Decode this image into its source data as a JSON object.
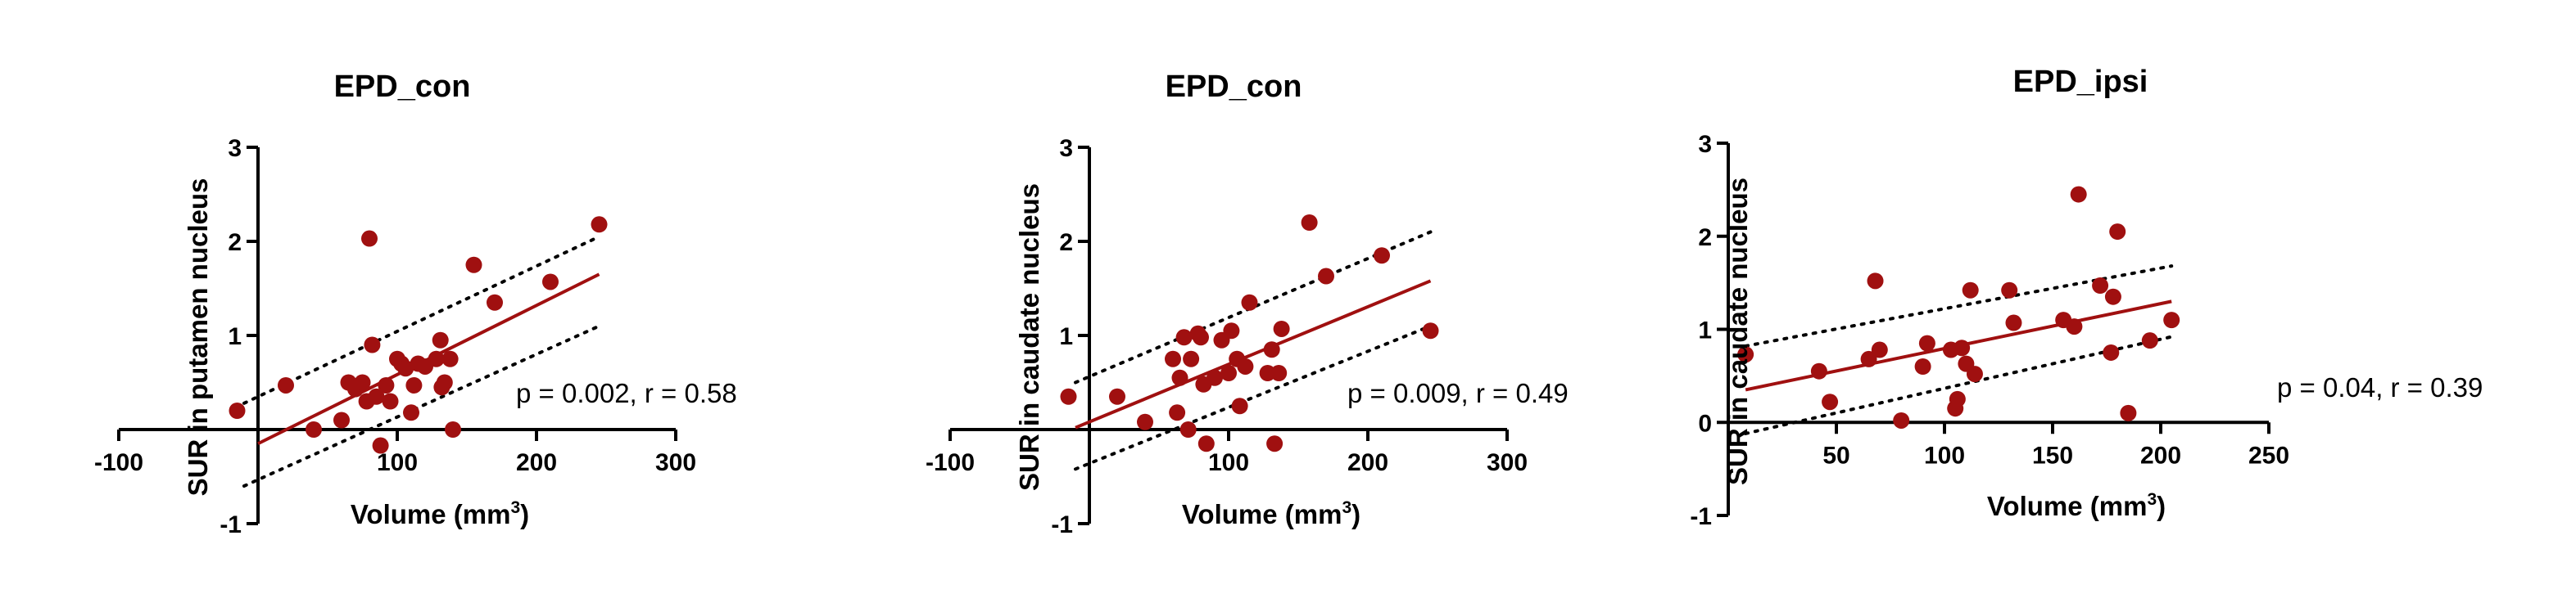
{
  "chart_data": [
    {
      "type": "scatter",
      "title": "EPD_con",
      "xlabel": "Volume (mm",
      "xlabel_sup": "3",
      "xlabel_close": ")",
      "ylabel": "SUR in putamen nucleus",
      "xlim": [
        -100,
        300
      ],
      "ylim": [
        -1,
        3
      ],
      "xticks": [
        -100,
        100,
        200,
        300
      ],
      "yticks": [
        -1,
        1,
        2,
        3
      ],
      "annotation": "p = 0.002, r = 0.58",
      "marker_color": "#a01010",
      "fit_color": "#a01010",
      "points": [
        [
          -15,
          0.2
        ],
        [
          20,
          0.47
        ],
        [
          40,
          0
        ],
        [
          60,
          0.1
        ],
        [
          65,
          0.5
        ],
        [
          70,
          0.43
        ],
        [
          75,
          0.5
        ],
        [
          78,
          0.3
        ],
        [
          80,
          2.03
        ],
        [
          82,
          0.9
        ],
        [
          85,
          0.35
        ],
        [
          88,
          -0.17
        ],
        [
          92,
          0.47
        ],
        [
          95,
          0.3
        ],
        [
          100,
          0.75
        ],
        [
          103,
          0.7
        ],
        [
          106,
          0.65
        ],
        [
          110,
          0.18
        ],
        [
          112,
          0.47
        ],
        [
          115,
          0.7
        ],
        [
          120,
          0.67
        ],
        [
          128,
          0.75
        ],
        [
          131,
          0.95
        ],
        [
          132,
          0.45
        ],
        [
          134,
          0.5
        ],
        [
          138,
          0.75
        ],
        [
          140,
          0
        ],
        [
          155,
          1.75
        ],
        [
          170,
          1.35
        ],
        [
          210,
          1.57
        ],
        [
          245,
          2.18
        ]
      ],
      "fit": [
        [
          0,
          -0.15
        ],
        [
          245,
          1.65
        ]
      ],
      "ci_upper": [
        [
          -10,
          0.28
        ],
        [
          245,
          2.05
        ]
      ],
      "ci_lower": [
        [
          -10,
          -0.6
        ],
        [
          245,
          1.1
        ]
      ]
    },
    {
      "type": "scatter",
      "title": "EPD_con",
      "xlabel": "Volume (mm",
      "xlabel_sup": "3",
      "xlabel_close": ")",
      "ylabel": "SUR in caudate nucleus",
      "xlim": [
        -100,
        300
      ],
      "ylim": [
        -1,
        3
      ],
      "xticks": [
        -100,
        100,
        200,
        300
      ],
      "yticks": [
        -1,
        1,
        2,
        3
      ],
      "annotation": "p = 0.009, r = 0.49",
      "marker_color": "#a01010",
      "fit_color": "#a01010",
      "points": [
        [
          -15,
          0.35
        ],
        [
          20,
          0.35
        ],
        [
          40,
          0.08
        ],
        [
          60,
          0.75
        ],
        [
          63,
          0.18
        ],
        [
          65,
          0.55
        ],
        [
          68,
          0.98
        ],
        [
          71,
          0
        ],
        [
          73,
          0.75
        ],
        [
          78,
          1.02
        ],
        [
          80,
          0.98
        ],
        [
          82,
          0.48
        ],
        [
          84,
          -0.15
        ],
        [
          90,
          0.55
        ],
        [
          95,
          0.95
        ],
        [
          100,
          0.6
        ],
        [
          102,
          1.05
        ],
        [
          106,
          0.75
        ],
        [
          108,
          0.25
        ],
        [
          112,
          0.67
        ],
        [
          115,
          1.35
        ],
        [
          128,
          0.6
        ],
        [
          131,
          0.85
        ],
        [
          133,
          -0.15
        ],
        [
          136,
          0.6
        ],
        [
          138,
          1.07
        ],
        [
          158,
          2.2
        ],
        [
          170,
          1.63
        ],
        [
          210,
          1.85
        ],
        [
          245,
          1.05
        ]
      ],
      "fit": [
        [
          -10,
          0.02
        ],
        [
          245,
          1.58
        ]
      ],
      "ci_upper": [
        [
          -10,
          0.5
        ],
        [
          245,
          2.1
        ]
      ],
      "ci_lower": [
        [
          -10,
          -0.42
        ],
        [
          245,
          1.1
        ]
      ]
    },
    {
      "type": "scatter",
      "title": "EPD_ipsi",
      "xlabel": "Volume (mm",
      "xlabel_sup": "3",
      "xlabel_close": ")",
      "ylabel": "SUR in caudate nucleus",
      "xlim": [
        0,
        250
      ],
      "ylim": [
        -1,
        3
      ],
      "xticks": [
        50,
        100,
        150,
        200,
        250
      ],
      "yticks": [
        -1,
        0,
        1,
        2,
        3
      ],
      "annotation": "p = 0.04, r = 0.39",
      "marker_color": "#a01010",
      "fit_color": "#a01010",
      "points": [
        [
          8,
          0.73
        ],
        [
          42,
          0.55
        ],
        [
          47,
          0.22
        ],
        [
          65,
          0.68
        ],
        [
          68,
          1.52
        ],
        [
          70,
          0.78
        ],
        [
          80,
          0.02
        ],
        [
          90,
          0.6
        ],
        [
          92,
          0.85
        ],
        [
          103,
          0.78
        ],
        [
          105,
          0.15
        ],
        [
          106,
          0.25
        ],
        [
          108,
          0.8
        ],
        [
          110,
          0.63
        ],
        [
          112,
          1.42
        ],
        [
          114,
          0.52
        ],
        [
          130,
          1.42
        ],
        [
          132,
          1.07
        ],
        [
          155,
          1.1
        ],
        [
          160,
          1.03
        ],
        [
          162,
          2.45
        ],
        [
          172,
          1.47
        ],
        [
          177,
          0.75
        ],
        [
          178,
          1.35
        ],
        [
          180,
          2.05
        ],
        [
          185,
          0.1
        ],
        [
          195,
          0.88
        ],
        [
          205,
          1.1
        ]
      ],
      "fit": [
        [
          8,
          0.35
        ],
        [
          205,
          1.3
        ]
      ],
      "ci_upper": [
        [
          8,
          0.82
        ],
        [
          205,
          1.68
        ]
      ],
      "ci_lower": [
        [
          8,
          -0.12
        ],
        [
          205,
          0.92
        ]
      ]
    }
  ]
}
